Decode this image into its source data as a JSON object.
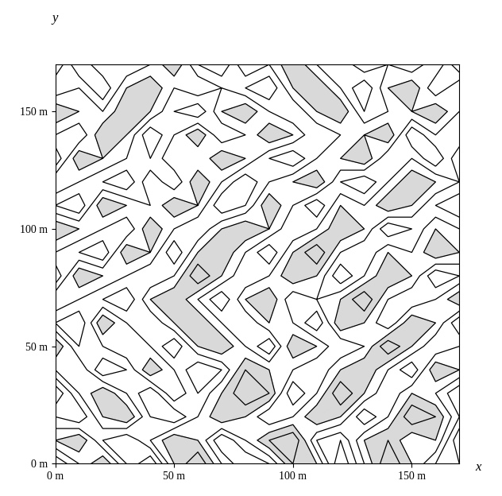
{
  "chart_data": {
    "type": "contour",
    "x_label": "x",
    "y_label": "y",
    "x": [
      0,
      10,
      20,
      30,
      40,
      50,
      60,
      70,
      80,
      90,
      100,
      110,
      120,
      130,
      140,
      150,
      160,
      170
    ],
    "y": [
      0,
      10,
      20,
      30,
      40,
      50,
      60,
      70,
      80,
      90,
      100,
      110,
      120,
      130,
      140,
      150,
      160,
      170
    ],
    "z": [
      [
        3,
        5,
        7,
        4,
        2,
        6,
        8,
        5,
        3,
        4,
        7,
        6,
        2,
        5,
        8,
        6,
        4,
        3
      ],
      [
        6,
        7,
        4,
        3,
        5,
        7,
        6,
        3,
        5,
        7,
        8,
        4,
        3,
        6,
        7,
        5,
        6,
        2
      ],
      [
        4,
        3,
        6,
        7,
        4,
        3,
        5,
        7,
        6,
        4,
        5,
        7,
        6,
        3,
        5,
        8,
        7,
        4
      ],
      [
        2,
        5,
        7,
        5,
        3,
        6,
        4,
        6,
        8,
        7,
        3,
        5,
        8,
        6,
        4,
        6,
        5,
        3
      ],
      [
        5,
        6,
        3,
        4,
        7,
        5,
        3,
        4,
        7,
        6,
        5,
        4,
        6,
        7,
        5,
        3,
        7,
        6
      ],
      [
        7,
        4,
        5,
        6,
        5,
        3,
        6,
        7,
        5,
        3,
        7,
        6,
        4,
        5,
        8,
        6,
        4,
        5
      ],
      [
        4,
        3,
        7,
        5,
        4,
        6,
        7,
        5,
        4,
        6,
        5,
        3,
        7,
        6,
        4,
        7,
        6,
        3
      ],
      [
        6,
        5,
        4,
        3,
        6,
        7,
        5,
        3,
        6,
        7,
        4,
        5,
        6,
        8,
        5,
        4,
        5,
        7
      ],
      [
        3,
        7,
        6,
        5,
        4,
        5,
        8,
        6,
        4,
        5,
        7,
        6,
        3,
        5,
        7,
        6,
        3,
        4
      ],
      [
        5,
        4,
        3,
        7,
        6,
        3,
        6,
        7,
        5,
        3,
        6,
        8,
        5,
        4,
        6,
        5,
        7,
        6
      ],
      [
        7,
        6,
        5,
        4,
        7,
        5,
        4,
        6,
        7,
        6,
        4,
        5,
        7,
        6,
        3,
        4,
        6,
        5
      ],
      [
        4,
        3,
        7,
        6,
        5,
        7,
        6,
        3,
        4,
        7,
        5,
        3,
        6,
        5,
        7,
        6,
        4,
        3
      ],
      [
        6,
        5,
        4,
        3,
        6,
        4,
        7,
        5,
        3,
        5,
        6,
        7,
        4,
        3,
        5,
        7,
        6,
        5
      ],
      [
        3,
        7,
        6,
        5,
        4,
        6,
        5,
        7,
        6,
        4,
        3,
        5,
        6,
        7,
        4,
        5,
        3,
        6
      ],
      [
        5,
        4,
        7,
        6,
        3,
        5,
        7,
        4,
        5,
        7,
        6,
        4,
        5,
        6,
        7,
        3,
        5,
        4
      ],
      [
        7,
        6,
        5,
        7,
        6,
        4,
        3,
        6,
        7,
        5,
        4,
        6,
        7,
        4,
        5,
        6,
        7,
        5
      ],
      [
        4,
        5,
        3,
        6,
        7,
        5,
        6,
        5,
        4,
        3,
        6,
        7,
        5,
        3,
        6,
        7,
        4,
        6
      ],
      [
        6,
        3,
        5,
        4,
        5,
        7,
        4,
        3,
        6,
        5,
        7,
        5,
        4,
        6,
        5,
        4,
        6,
        3
      ]
    ],
    "levels": [
      3,
      4,
      5,
      6,
      7
    ],
    "fill_levels": [
      6,
      9
    ],
    "color": "#000000",
    "fill_color": "#d9d9d9",
    "xlim": [
      0,
      170
    ],
    "ylim": [
      0,
      170
    ],
    "xticks": [
      {
        "value": 0,
        "label": "0 m"
      },
      {
        "value": 50,
        "label": "50 m"
      },
      {
        "value": 100,
        "label": "100 m"
      },
      {
        "value": 150,
        "label": "150 m"
      }
    ],
    "yticks": [
      {
        "value": 0,
        "label": "0 m"
      },
      {
        "value": 50,
        "label": "50 m"
      },
      {
        "value": 100,
        "label": "100 m"
      },
      {
        "value": 150,
        "label": "150 m"
      }
    ],
    "grid": false
  }
}
